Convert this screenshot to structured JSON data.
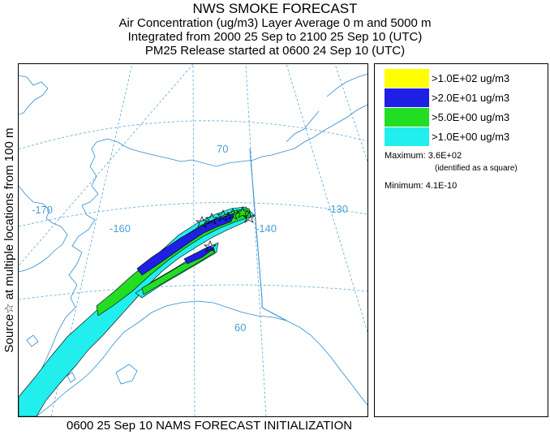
{
  "header": {
    "title": "NWS SMOKE FORECAST",
    "line2": "Air Concentration (ug/m3) Layer Average    0 m and  5000 m",
    "line3": "Integrated from 2000 25 Sep to 2100 25 Sep 10 (UTC)",
    "line4": "PM25 Release started at 0600 24 Sep 10 (UTC)"
  },
  "side_label": "Source☆ at multiple locations   from   100 m",
  "footer": {
    "caption": "0600 25 Sep 10 NAMS FORECAST INITIALIZATION"
  },
  "map": {
    "longitude_labels": [
      "-170",
      "-160",
      "-140",
      "-130"
    ],
    "latitude_labels": [
      "70",
      "60"
    ],
    "colors": {
      "coast": "#2d8ccf",
      "grid": "#5aa7d6",
      "contour_line": "#000000"
    }
  },
  "legend": {
    "items": [
      {
        "label": ">1.0E+02 ug/m3",
        "color": "#ffff00"
      },
      {
        "label": ">2.0E+01 ug/m3",
        "color": "#1f1fe6"
      },
      {
        "label": ">5.0E+00 ug/m3",
        "color": "#22dd22"
      },
      {
        "label": ">1.0E+00 ug/m3",
        "color": "#22eeee"
      }
    ],
    "maximum_label": "Maximum: 3.6E+02",
    "maximum_note": "(identified as a square)",
    "minimum_label": "Minimum: 4.1E-10"
  }
}
